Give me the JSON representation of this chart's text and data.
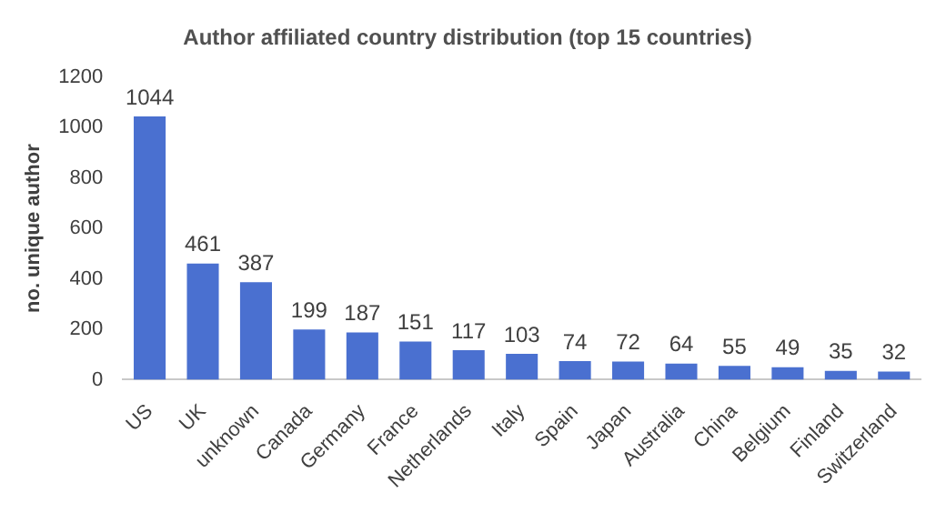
{
  "chart_data": {
    "type": "bar",
    "title": "Author affiliated country distribution (top 15 countries)",
    "ylabel": "no. unique author",
    "categories": [
      "US",
      "UK",
      "unknown",
      "Canada",
      "Germany",
      "France",
      "Netherlands",
      "Italy",
      "Spain",
      "Japan",
      "Australia",
      "China",
      "Belgium",
      "Finland",
      "Switzerland"
    ],
    "values": [
      1044,
      461,
      387,
      199,
      187,
      151,
      117,
      103,
      74,
      72,
      64,
      55,
      49,
      35,
      32
    ],
    "color": "#4a70d0",
    "ylim": [
      0,
      1200
    ],
    "yticks": [
      0,
      200,
      400,
      600,
      800,
      1000,
      1200
    ],
    "grid": false,
    "data_labels": true,
    "legend": false
  }
}
